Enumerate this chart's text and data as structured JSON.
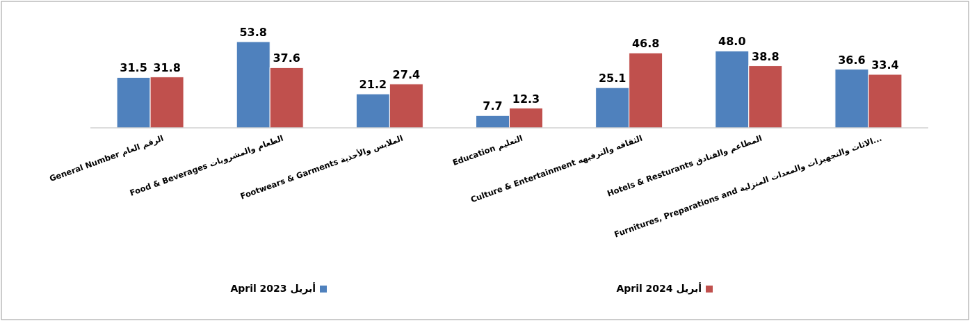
{
  "chart_data": {
    "type": "bar",
    "categories": [
      "General Number الرقم العام",
      "Food & Beverages  الطعام والمشروبات",
      "Footwears & Garments  الملابس والأحذية",
      "Education  التعليم",
      "Culture & Entertainment الثقافه والترفيهه",
      "Hotels & Resturants  المطاعم والفنادق",
      "Furnitures, Preparations and  الاثاث والتجهيزات والمعدات المنزلية..."
    ],
    "series": [
      {
        "name": "April 2023 أبريل",
        "color": "#4f81bd",
        "values": [
          31.5,
          53.8,
          21.2,
          7.7,
          25.1,
          48.0,
          36.6
        ],
        "value_labels": [
          "31.5",
          "53.8",
          "21.2",
          "7.7",
          "25.1",
          "48.0",
          "36.6"
        ]
      },
      {
        "name": "April 2024 أبريل",
        "color": "#c0504d",
        "values": [
          31.8,
          37.6,
          27.4,
          12.3,
          46.8,
          38.8,
          33.4
        ],
        "value_labels": [
          "31.8",
          "37.6",
          "27.4",
          "12.3",
          "46.8",
          "38.8",
          "33.4"
        ]
      }
    ],
    "legend": "bottom"
  }
}
